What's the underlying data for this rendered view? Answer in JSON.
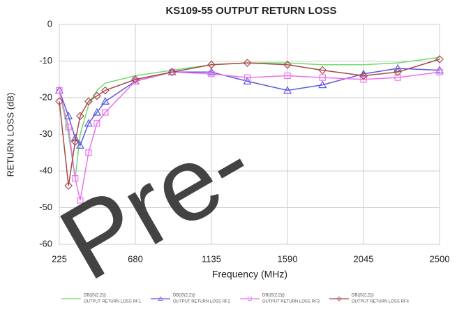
{
  "chart_data": {
    "type": "line",
    "title": "KS109-55 OUTPUT RETURN LOSS",
    "x_label": "Frequency (MHz)",
    "y_label": "RETURN LOSS (dB)",
    "watermark": "Pre-",
    "x": [
      225,
      280,
      320,
      350,
      400,
      450,
      500,
      680,
      900,
      1135,
      1350,
      1590,
      1800,
      2045,
      2250,
      2500
    ],
    "xlim": [
      225,
      2500
    ],
    "xticks": [
      225,
      680,
      1135,
      1590,
      2045,
      2500
    ],
    "ylim": [
      -60,
      0
    ],
    "yticks": [
      -60,
      -50,
      -40,
      -30,
      -20,
      -10,
      0
    ],
    "grid": true,
    "legend_position": "bottom",
    "series": [
      {
        "name": "OUTPUT RETURN LOSS RF1",
        "measurement": "DB(|S(2,2)|)",
        "color": "#6fdc6f",
        "marker": "none",
        "values": [
          -18,
          -30,
          -42,
          -30,
          -22,
          -18,
          -16,
          -14,
          -12.5,
          -11,
          -10.5,
          -10.5,
          -11,
          -11,
          -10.5,
          -9
        ]
      },
      {
        "name": "OUTPUT RETURN LOSS RF2",
        "measurement": "DB(|S(2,2)|)",
        "color": "#5a5ae0",
        "marker": "triangle",
        "values": [
          -18,
          -25,
          -31,
          -33,
          -27,
          -24,
          -21,
          -15.5,
          -13,
          -13,
          -15.5,
          -18,
          -16.5,
          -13.5,
          -12,
          -12.5
        ]
      },
      {
        "name": "OUTPUT RETURN LOSS RF3",
        "measurement": "DB(|S(2,2)|)",
        "color": "#ee70ee",
        "marker": "square",
        "values": [
          -18,
          -28,
          -42,
          -48,
          -35,
          -27,
          -24,
          -15.5,
          -13,
          -13.5,
          -14.5,
          -14,
          -14.5,
          -15,
          -14.5,
          -13
        ]
      },
      {
        "name": "OUTPUT RETURN LOSS RF4",
        "measurement": "DB(|S(2,2)|)",
        "color": "#a84848",
        "marker": "diamond",
        "values": [
          -21,
          -44,
          -32,
          -25,
          -21,
          -19.5,
          -18,
          -15,
          -13,
          -11,
          -10.5,
          -11,
          -12.5,
          -14,
          -13,
          -9.5
        ]
      }
    ]
  }
}
